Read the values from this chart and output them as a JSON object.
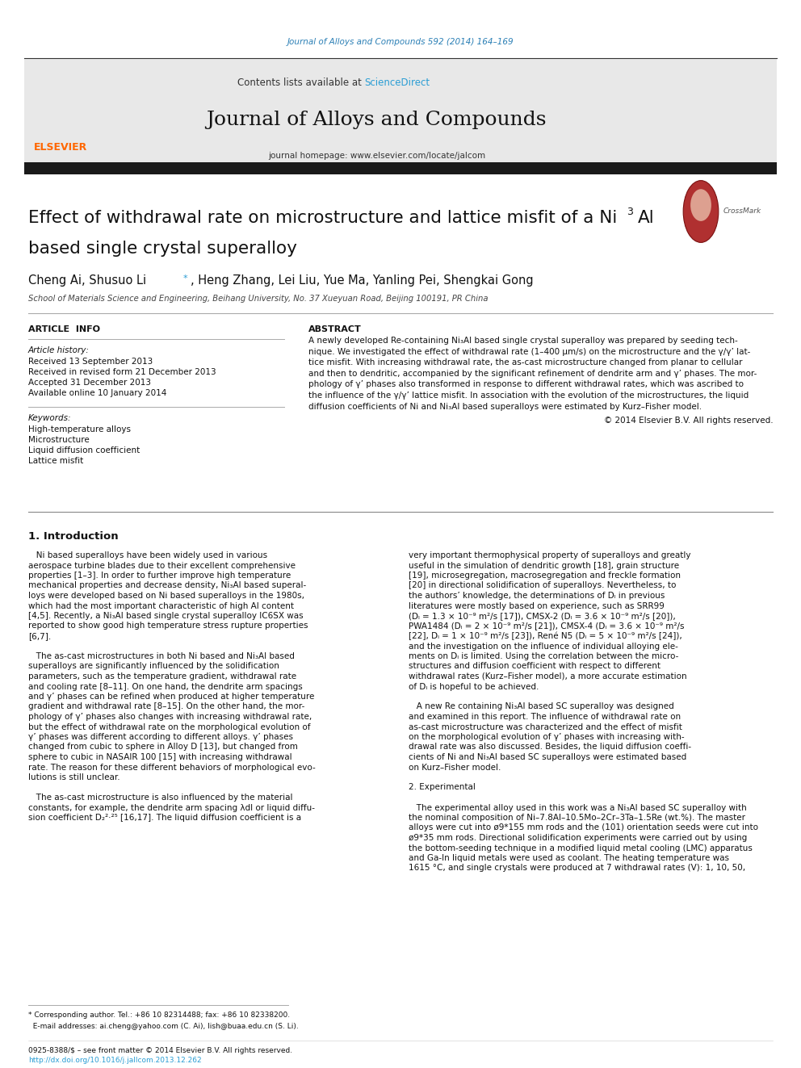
{
  "page_width": 9.92,
  "page_height": 13.23,
  "background_color": "#ffffff",
  "journal_ref_color": "#2a7fb5",
  "journal_ref_text": "Journal of Alloys and Compounds 592 (2014) 164–169",
  "header_bg_color": "#e8e8e8",
  "header_text": "Contents lists available at ",
  "sciencedirect_text": "ScienceDirect",
  "sciencedirect_color": "#2a9dd4",
  "journal_title": "Journal of Alloys and Compounds",
  "journal_homepage": "journal homepage: www.elsevier.com/locate/jalcom",
  "black_bar_color": "#1a1a1a",
  "article_info_title": "ARTICLE  INFO",
  "abstract_title": "ABSTRACT",
  "article_history_label": "Article history:",
  "received_text": "Received 13 September 2013",
  "revised_text": "Received in revised form 21 December 2013",
  "accepted_text": "Accepted 31 December 2013",
  "online_text": "Available online 10 January 2014",
  "keywords_label": "Keywords:",
  "keyword1": "High-temperature alloys",
  "keyword2": "Microstructure",
  "keyword3": "Liquid diffusion coefficient",
  "keyword4": "Lattice misfit",
  "copyright_text": "© 2014 Elsevier B.V. All rights reserved.",
  "intro_title": "1. Introduction",
  "affiliation": "School of Materials Science and Engineering, Beihang University, No. 37 Xueyuan Road, Beijing 100191, PR China",
  "link_color": "#2a9dd4",
  "text_color": "#000000",
  "abstract_lines": [
    "A newly developed Re-containing Ni₃Al based single crystal superalloy was prepared by seeding tech-",
    "nique. We investigated the effect of withdrawal rate (1–400 μm/s) on the microstructure and the γ/γ’ lat-",
    "tice misfit. With increasing withdrawal rate, the as-cast microstructure changed from planar to cellular",
    "and then to dendritic, accompanied by the significant refinement of dendrite arm and γ’ phases. The mor-",
    "phology of γ’ phases also transformed in response to different withdrawal rates, which was ascribed to",
    "the influence of the γ/γ’ lattice misfit. In association with the evolution of the microstructures, the liquid",
    "diffusion coefficients of Ni and Ni₃Al based superalloys were estimated by Kurz–Fisher model."
  ],
  "intro_left_lines": [
    "   Ni based superalloys have been widely used in various",
    "aerospace turbine blades due to their excellent comprehensive",
    "properties [1–3]. In order to further improve high temperature",
    "mechanical properties and decrease density, Ni₃Al based superal-",
    "loys were developed based on Ni based superalloys in the 1980s,",
    "which had the most important characteristic of high Al content",
    "[4,5]. Recently, a Ni₃Al based single crystal superalloy IC6SX was",
    "reported to show good high temperature stress rupture properties",
    "[6,7].",
    "",
    "   The as-cast microstructures in both Ni based and Ni₃Al based",
    "superalloys are significantly influenced by the solidification",
    "parameters, such as the temperature gradient, withdrawal rate",
    "and cooling rate [8–11]. On one hand, the dendrite arm spacings",
    "and γ’ phases can be refined when produced at higher temperature",
    "gradient and withdrawal rate [8–15]. On the other hand, the mor-",
    "phology of γ’ phases also changes with increasing withdrawal rate,",
    "but the effect of withdrawal rate on the morphological evolution of",
    "γ’ phases was different according to different alloys. γ’ phases",
    "changed from cubic to sphere in Alloy D [13], but changed from",
    "sphere to cubic in NASAIR 100 [15] with increasing withdrawal",
    "rate. The reason for these different behaviors of morphological evo-",
    "lutions is still unclear.",
    "",
    "   The as-cast microstructure is also influenced by the material",
    "constants, for example, the dendrite arm spacing λdl or liquid diffu-",
    "sion coefficient D₂²·²⁵ [16,17]. The liquid diffusion coefficient is a"
  ],
  "intro_right_lines": [
    "very important thermophysical property of superalloys and greatly",
    "useful in the simulation of dendritic growth [18], grain structure",
    "[19], microsegregation, macrosegregation and freckle formation",
    "[20] in directional solidification of superalloys. Nevertheless, to",
    "the authors’ knowledge, the determinations of Dₗ in previous",
    "literatures were mostly based on experience, such as SRR99",
    "(Dₗ = 1.3 × 10⁻⁹ m²/s [17]), CMSX-2 (Dₗ = 3.6 × 10⁻⁹ m²/s [20]),",
    "PWA1484 (Dₗ = 2 × 10⁻⁹ m²/s [21]), CMSX-4 (Dₗ = 3.6 × 10⁻⁹ m²/s",
    "[22], Dₗ = 1 × 10⁻⁹ m²/s [23]), René N5 (Dₗ = 5 × 10⁻⁹ m²/s [24]),",
    "and the investigation on the influence of individual alloying ele-",
    "ments on Dₗ is limited. Using the correlation between the micro-",
    "structures and diffusion coefficient with respect to different",
    "withdrawal rates (Kurz–Fisher model), a more accurate estimation",
    "of Dₗ is hopeful to be achieved.",
    "",
    "   A new Re containing Ni₃Al based SC superalloy was designed",
    "and examined in this report. The influence of withdrawal rate on",
    "as-cast microstructure was characterized and the effect of misfit",
    "on the morphological evolution of γ’ phases with increasing with-",
    "drawal rate was also discussed. Besides, the liquid diffusion coeffi-",
    "cients of Ni and Ni₃Al based SC superalloys were estimated based",
    "on Kurz–Fisher model.",
    "",
    "2. Experimental",
    "",
    "   The experimental alloy used in this work was a Ni₃Al based SC superalloy with",
    "the nominal composition of Ni–7.8Al–10.5Mo–2Cr–3Ta–1.5Re (wt.%). The master",
    "alloys were cut into ø9*155 mm rods and the (101) orientation seeds were cut into",
    "ø9*35 mm rods. Directional solidification experiments were carried out by using",
    "the bottom-seeding technique in a modified liquid metal cooling (LMC) apparatus",
    "and Ga-In liquid metals were used as coolant. The heating temperature was",
    "1615 °C, and single crystals were produced at 7 withdrawal rates (V): 1, 10, 50,"
  ]
}
